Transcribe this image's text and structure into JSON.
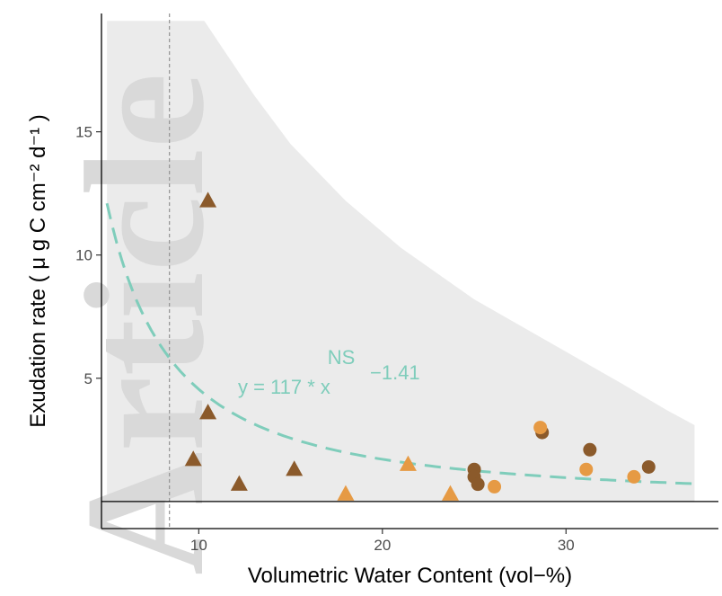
{
  "watermark": "Article",
  "chart_data": {
    "type": "scatter",
    "xlabel": "Volumetric Water Content (vol−%)",
    "ylabel": "Exudation rate ( μ g C  cm⁻²  d⁻¹ )",
    "xlim": [
      4.7,
      38.3
    ],
    "ylim": [
      -1.1,
      19.8
    ],
    "xticks": [
      10,
      20,
      30
    ],
    "yticks": [
      5,
      10,
      15
    ],
    "x_tick_labels": [
      "10",
      "20",
      "30"
    ],
    "y_tick_labels": [
      "5",
      "10",
      "15"
    ],
    "grid": false,
    "legend": "none",
    "colors": {
      "dark": "#8b5a2b",
      "light": "#e69a44",
      "fit": "#7fcdbb",
      "band": "#ebebeb",
      "ref_line": "#999999"
    },
    "reference_lines": {
      "vertical_x": 8.4,
      "horizontal_y": 0
    },
    "fit": {
      "a": 117,
      "b": -1.41,
      "x_range": [
        5,
        37
      ],
      "label_ns": "NS",
      "label_eq": "y = 117 * x",
      "label_exp": "−1.41"
    },
    "band": {
      "x": [
        5,
        10.3,
        13,
        15,
        18,
        21,
        25,
        29,
        33,
        35.5,
        37
      ],
      "upper": [
        19.5,
        19.5,
        16.5,
        14.5,
        12.2,
        10.3,
        8.2,
        6.5,
        4.8,
        3.7,
        3.1
      ],
      "lower": [
        0,
        0,
        0,
        0,
        0,
        0,
        0,
        0,
        0,
        0,
        0
      ]
    },
    "series": [
      {
        "marker": "triangle",
        "color": "#8b5a2b",
        "points": [
          [
            10.5,
            12.2
          ],
          [
            10.5,
            3.6
          ],
          [
            9.7,
            1.7
          ],
          [
            12.2,
            0.7
          ],
          [
            15.2,
            1.3
          ]
        ]
      },
      {
        "marker": "triangle",
        "color": "#e69a44",
        "points": [
          [
            18,
            0.3
          ],
          [
            21.4,
            1.5
          ],
          [
            23.7,
            0.3
          ]
        ]
      },
      {
        "marker": "circle",
        "color": "#8b5a2b",
        "points": [
          [
            25,
            1.3
          ],
          [
            25,
            1.0
          ],
          [
            25.2,
            0.7
          ],
          [
            28.7,
            2.8
          ],
          [
            31.3,
            2.1
          ],
          [
            34.5,
            1.4
          ]
        ]
      },
      {
        "marker": "circle",
        "color": "#e69a44",
        "points": [
          [
            26.1,
            0.6
          ],
          [
            28.6,
            3.0
          ],
          [
            31.1,
            1.3
          ],
          [
            33.7,
            1.0
          ]
        ]
      }
    ]
  }
}
